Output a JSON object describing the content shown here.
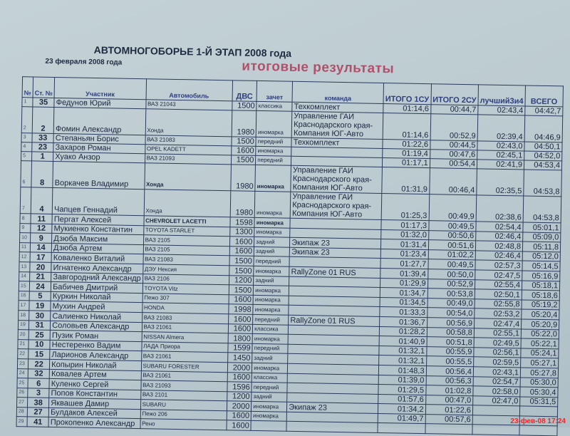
{
  "header": {
    "title": "АВТОМНОГОБОРЬЕ 1-Й ЭТАП 2008 года",
    "date": "23 февраля 2008 года",
    "subtitle": "итоговые результаты"
  },
  "columns": [
    "№",
    "Ст. №",
    "Участник",
    "Автомобиль",
    "ДВС",
    "зачет",
    "команда",
    "ИТОГО 1СУ",
    "ИТОГО 2СУ",
    "лучший3и4",
    "ВСЕГО"
  ],
  "rows": [
    [
      "1",
      "35",
      "Федунов Юрий",
      "ВАЗ 21043",
      "1500",
      "классика",
      "Техкомплект",
      "01:14,6",
      "00:44,7",
      "02:43,4",
      "04:42,7"
    ],
    [
      "2",
      "2",
      "Фомин Александр",
      "Хонда",
      "1980",
      "иномарка",
      "Управление ГАИ Краснодарского края-Компания ЮГ-Авто",
      "01:14,6",
      "00:52,9",
      "02:39,4",
      "04:46,9"
    ],
    [
      "3",
      "33",
      "Степаньян Борис",
      "ВАЗ 21083",
      "1500",
      "передний",
      "Техкомплект",
      "01:22,6",
      "00:44,5",
      "02:43,0",
      "04:50,1"
    ],
    [
      "4",
      "23",
      "Захаров Роман",
      "OPEL KADETT",
      "1600",
      "иномарка",
      "",
      "01:19,4",
      "00:47,6",
      "02:45,1",
      "04:52,0"
    ],
    [
      "5",
      "1",
      "Хуако Анзор",
      "ВАЗ 21093",
      "1500",
      "передний",
      "",
      "01:17,1",
      "00:54,4",
      "02:41,9",
      "04:53,4"
    ],
    [
      "6",
      "8",
      "Воркачев Владимир",
      "Хонда",
      "1980",
      "иномарка",
      "Управление ГАИ Краснодарского края-Компания ЮГ-Авто",
      "01:31,9",
      "00:46,4",
      "02:35,5",
      "04:53,8"
    ],
    [
      "7",
      "4",
      "Чапцев Геннадий",
      "Хонда",
      "1980",
      "иномарка",
      "Управление ГАИ Краснодарского края-Компания ЮГ-Авто",
      "01:25,3",
      "00:49,9",
      "02:38,6",
      "04:53,8"
    ],
    [
      "8",
      "11",
      "Пергат Алексей",
      "CHEVROLET LACETTI",
      "1598",
      "иномарка",
      "",
      "01:17,3",
      "00:49,5",
      "02:54,4",
      "05:01,1"
    ],
    [
      "9",
      "12",
      "Мукиенко Константин",
      "TOYOTA STARLET",
      "1300",
      "иномарка",
      "",
      "01:32,0",
      "00:50,6",
      "02:46,4",
      "05:09,0"
    ],
    [
      "10",
      "9",
      "Дзюба Максим",
      "ВАЗ 2105",
      "1600",
      "задний",
      "Экипаж 23",
      "01:31,4",
      "00:51,6",
      "02:48,8",
      "05:11,8"
    ],
    [
      "11",
      "14",
      "Дзюба Артем",
      "ВАЗ 2105",
      "1600",
      "задний",
      "Экипаж 23",
      "01:23,4",
      "01:02,2",
      "02:46,4",
      "05:12,0"
    ],
    [
      "12",
      "17",
      "Коваленко Виталий",
      "ВАЗ 21083",
      "1500",
      "передний",
      "",
      "01:27,7",
      "00:49,5",
      "02:57,3",
      "05:14,5"
    ],
    [
      "13",
      "20",
      "Игнатенко Александр",
      "ДЭУ Нексия",
      "1500",
      "иномарка",
      "RallyZone 01 RUS",
      "01:39,4",
      "00:50,0",
      "02:47,5",
      "05:16,9"
    ],
    [
      "14",
      "21",
      "Завгородний Александр",
      "ВАЗ 2106",
      "1200",
      "задний",
      "",
      "01:29,9",
      "00:52,9",
      "02:55,4",
      "05:18,1"
    ],
    [
      "15",
      "24",
      "Бабичев Дмитрий",
      "TOYOTA Vitz",
      "1500",
      "иномарка",
      "",
      "01:34,7",
      "00:53,8",
      "02:50,1",
      "05:18,6"
    ],
    [
      "16",
      "5",
      "Куркин Николай",
      "Пежо 307",
      "1600",
      "иномарка",
      "",
      "01:34,5",
      "00:49,0",
      "02:55,8",
      "05:19,2"
    ],
    [
      "17",
      "19",
      "Мухин Андрей",
      "HONDA",
      "1998",
      "иномарка",
      "",
      "01:33,3",
      "00:54,0",
      "02:53,2",
      "05:20,4"
    ],
    [
      "18",
      "30",
      "Салиенко Николай",
      "ВАЗ 21083",
      "1600",
      "передний",
      "RallyZone 01 RUS",
      "01:36,7",
      "00:56,9",
      "02:47,4",
      "05:20,9"
    ],
    [
      "19",
      "31",
      "Соловьев Александр",
      "ВАЗ 21061",
      "1600",
      "классика",
      "",
      "01:28,2",
      "00:58,8",
      "02:55,1",
      "05:22,0"
    ],
    [
      "20",
      "25",
      "Пузик Роман",
      "NISSAN Almera",
      "1800",
      "иномарка",
      "",
      "01:40,9",
      "00:51,8",
      "02:49,5",
      "05:22,1"
    ],
    [
      "21",
      "10",
      "Нестеренко Вадим",
      "ЛАДА Приора",
      "1599",
      "передний",
      "",
      "01:32,1",
      "00:55,9",
      "02:56,1",
      "05:24,1"
    ],
    [
      "22",
      "15",
      "Ларионов Александр",
      "ВАЗ 21061",
      "1450",
      "задний",
      "",
      "01:32,1",
      "00:55,5",
      "02:59,5",
      "05:27,1"
    ],
    [
      "23",
      "22",
      "Копырин Николай",
      "SUBARU FORESTER",
      "2000",
      "иномарка",
      "",
      "01:48,3",
      "00:56,4",
      "02:43,1",
      "05:27,8"
    ],
    [
      "24",
      "32",
      "Ковалев Артем",
      "ВАЗ 21061",
      "1600",
      "классика",
      "",
      "01:39,0",
      "00:56,3",
      "02:54,7",
      "05:30,0"
    ],
    [
      "25",
      "6",
      "Куленко Сергей",
      "ВАЗ 21093",
      "1596",
      "передний",
      "",
      "01:29,5",
      "01:02,8",
      "02:58,0",
      "05:30,4"
    ],
    [
      "26",
      "3",
      "Попов Константин",
      "ВАЗ 2101",
      "1200",
      "задний",
      "",
      "01:57,6",
      "00:47,0",
      "02:47,0",
      "05:31,5"
    ],
    [
      "27",
      "38",
      "Яквашев Дамир",
      "SUBARU",
      "2000",
      "иномарка",
      "Экипаж 23",
      "01:34,2",
      "01:22,6",
      "",
      ""
    ],
    [
      "28",
      "27",
      "Булдаков Алексей",
      "Пежо 206",
      "1600",
      "иномарка",
      "",
      "01:49,7",
      "00:57,6",
      "",
      ""
    ],
    [
      "29",
      "41",
      "Прокопенко Александр",
      "Рено",
      "1600",
      "",
      "",
      "",
      "",
      "",
      ""
    ]
  ],
  "camera_timestamp": "23-фев-08 17:24"
}
